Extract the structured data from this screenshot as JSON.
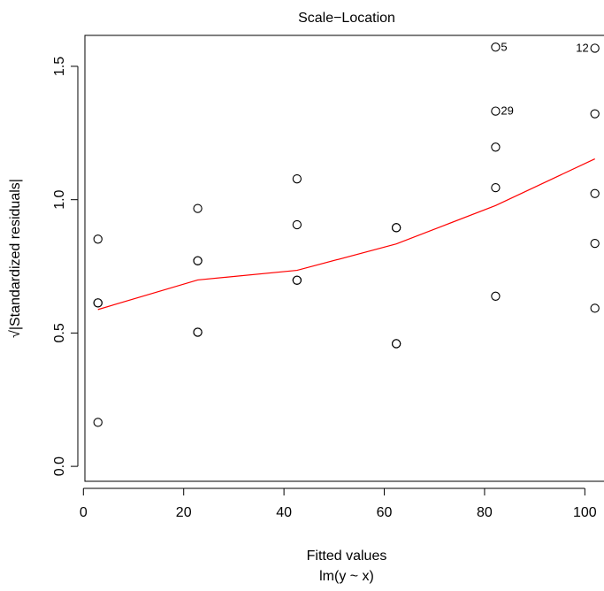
{
  "chart_data": {
    "type": "scatter",
    "title": "Scale−Location",
    "xlabel": "Fitted values",
    "xsublabel": "lm(y ~ x)",
    "ylabel": "√|Standardized residuals|",
    "xlim": [
      0.3,
      104.7
    ],
    "ylim": [
      -0.056,
      1.616
    ],
    "xticks": [
      0,
      20,
      40,
      60,
      80,
      100
    ],
    "yticks": [
      0.0,
      0.5,
      1.0,
      1.5
    ],
    "grid": false,
    "points": [
      {
        "x": 2.9,
        "y": 0.852
      },
      {
        "x": 2.9,
        "y": 0.613
      },
      {
        "x": 2.9,
        "y": 0.613
      },
      {
        "x": 2.9,
        "y": 0.165
      },
      {
        "x": 22.8,
        "y": 0.967
      },
      {
        "x": 22.8,
        "y": 0.771
      },
      {
        "x": 22.8,
        "y": 0.771
      },
      {
        "x": 22.8,
        "y": 0.503
      },
      {
        "x": 22.8,
        "y": 0.503
      },
      {
        "x": 42.6,
        "y": 1.078
      },
      {
        "x": 42.6,
        "y": 0.906
      },
      {
        "x": 42.6,
        "y": 0.698
      },
      {
        "x": 42.6,
        "y": 0.698
      },
      {
        "x": 62.4,
        "y": 0.895
      },
      {
        "x": 62.4,
        "y": 0.895
      },
      {
        "x": 62.4,
        "y": 0.46
      },
      {
        "x": 62.4,
        "y": 0.46
      },
      {
        "x": 82.2,
        "y": 1.572,
        "label": "5"
      },
      {
        "x": 82.2,
        "y": 1.332,
        "label": "29"
      },
      {
        "x": 82.2,
        "y": 1.197
      },
      {
        "x": 82.2,
        "y": 1.045
      },
      {
        "x": 82.2,
        "y": 0.638
      },
      {
        "x": 102.0,
        "y": 1.568,
        "label": "12"
      },
      {
        "x": 102.0,
        "y": 1.322
      },
      {
        "x": 102.0,
        "y": 1.023
      },
      {
        "x": 102.0,
        "y": 0.836
      },
      {
        "x": 102.0,
        "y": 0.593
      }
    ],
    "smooth_line": {
      "color": "#ff0000",
      "x": [
        2.9,
        22.8,
        42.6,
        62.4,
        82.2,
        102.0
      ],
      "y": [
        0.588,
        0.699,
        0.735,
        0.834,
        0.978,
        1.153
      ]
    }
  }
}
